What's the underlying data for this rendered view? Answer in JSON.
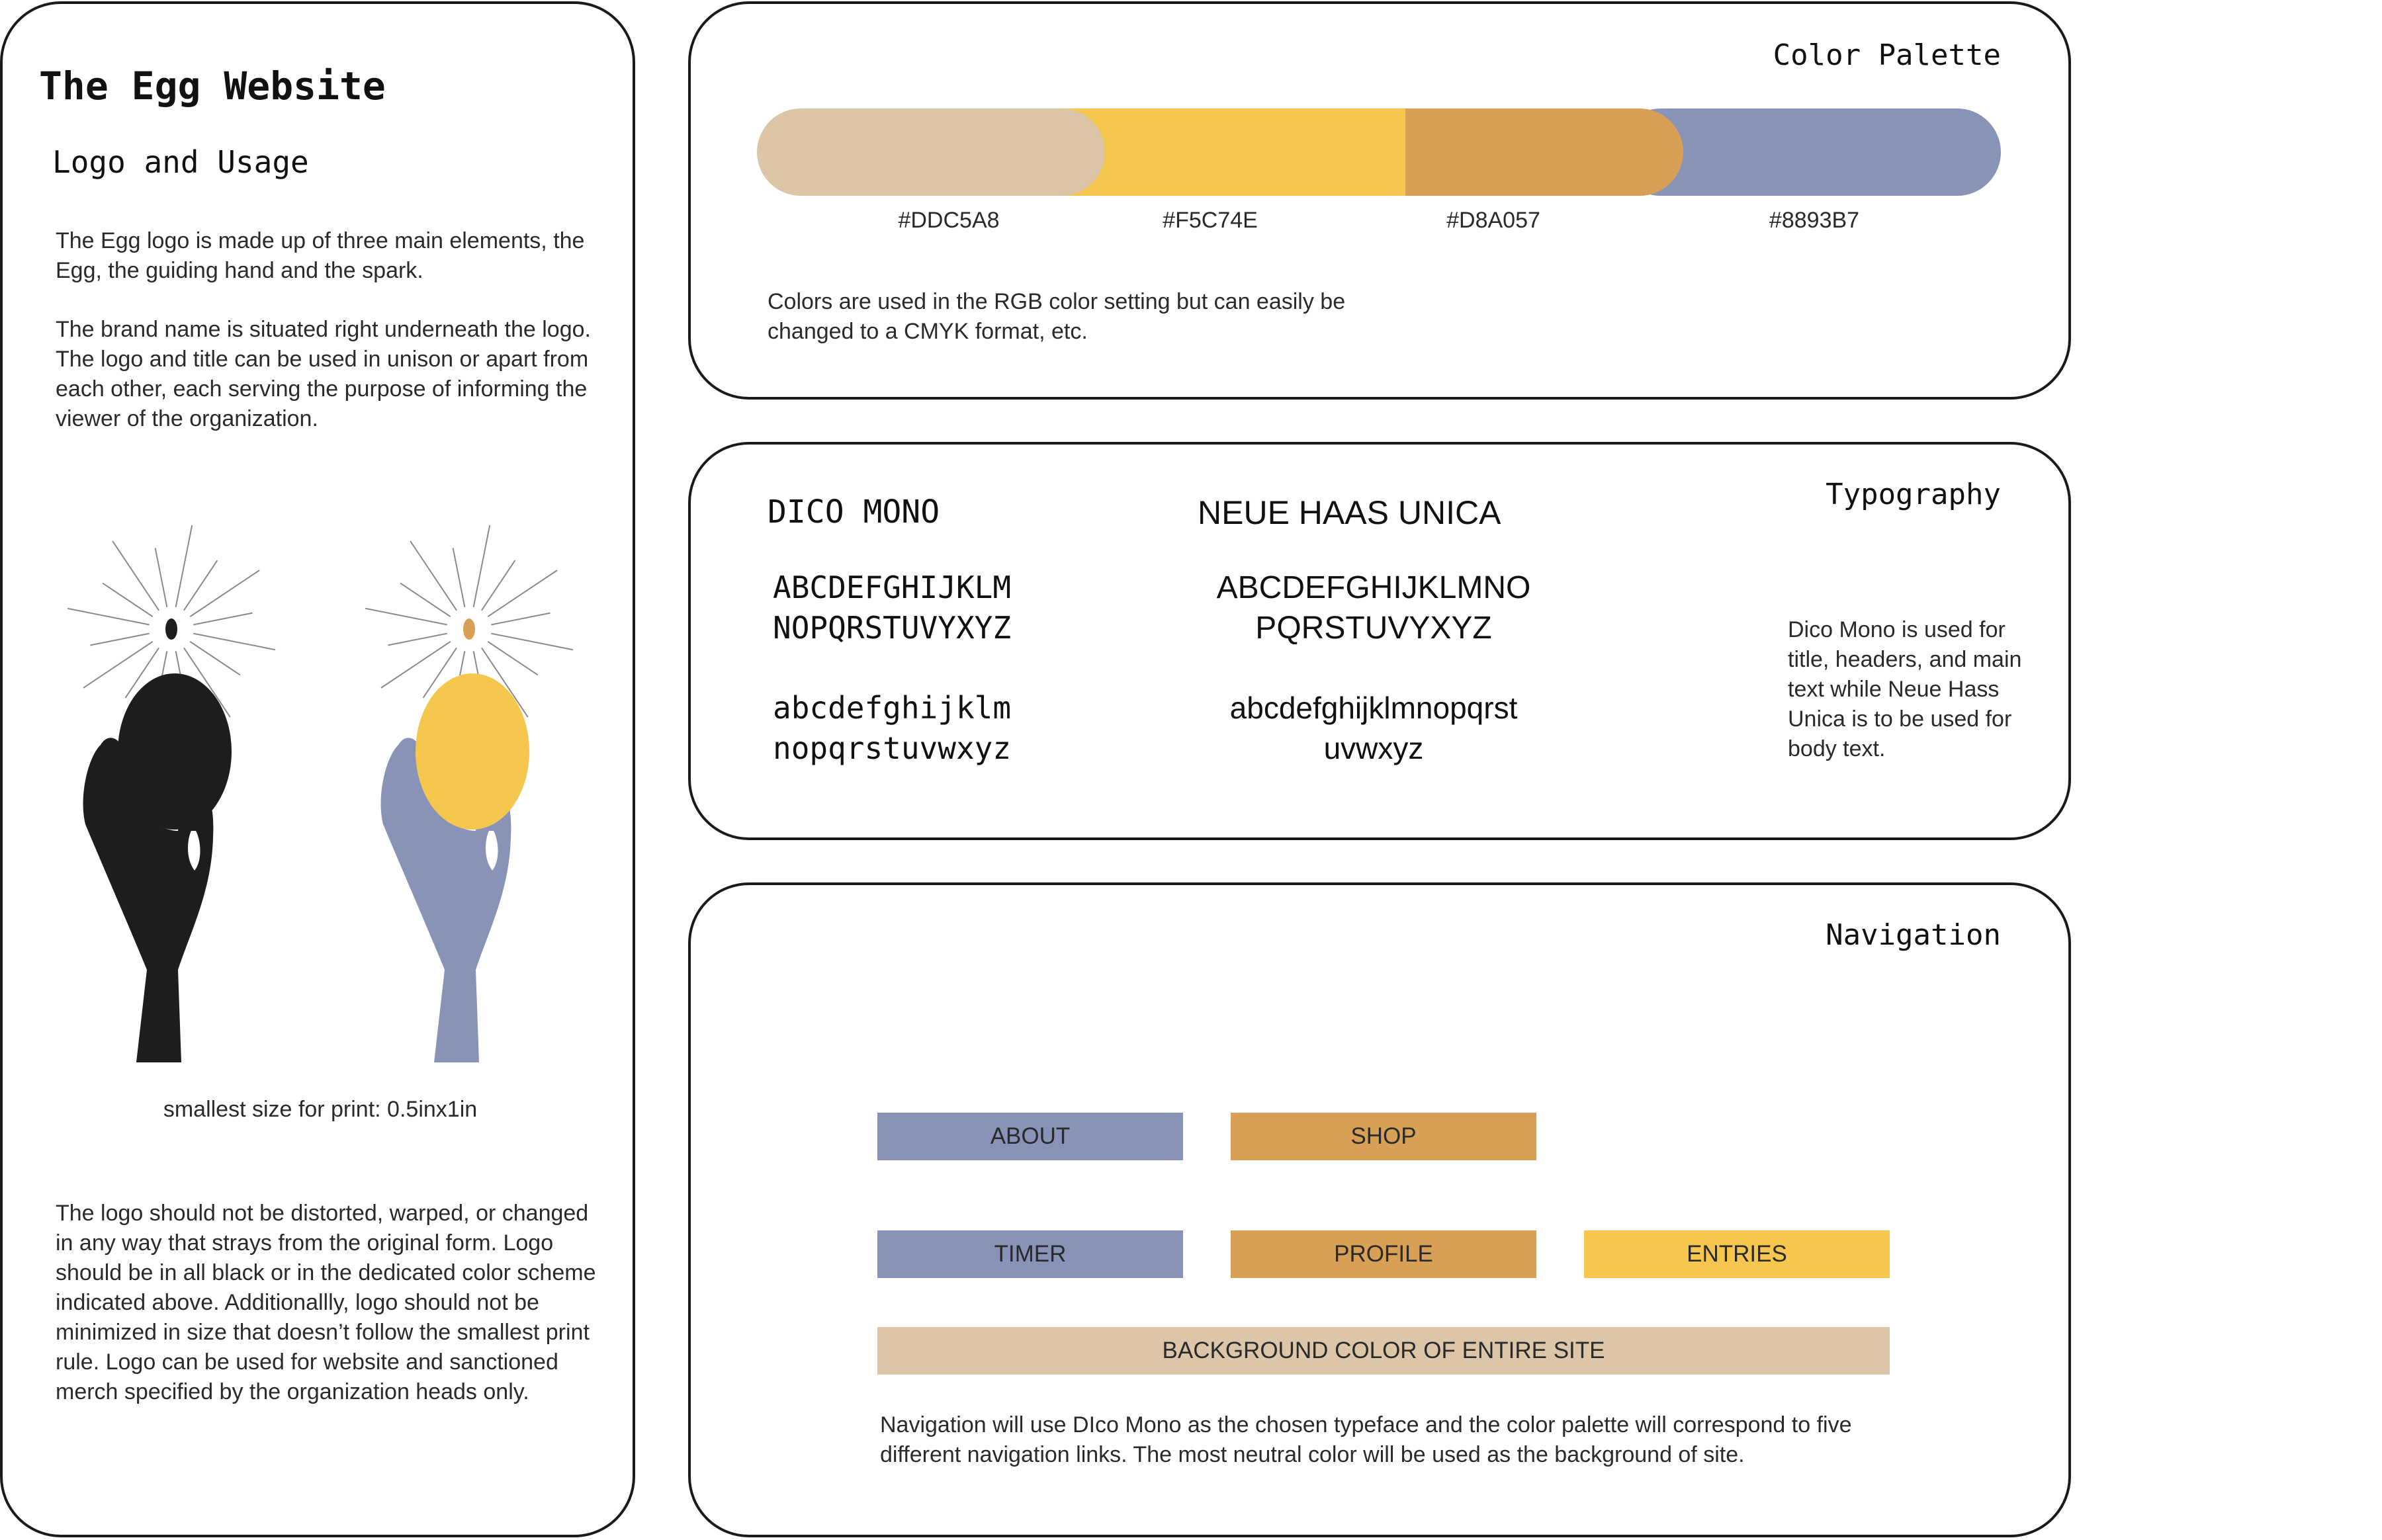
{
  "logo_section": {
    "title": "The Egg Website",
    "heading": "Logo and Usage",
    "intro_1": "The Egg logo is made up of three main elements, the Egg, the guiding hand and the spark.",
    "intro_2": "The brand name is situated right underneath the logo. The logo and title can be used in unison or apart from each other, each serving the purpose of informing the viewer of the organization.",
    "print_size": "smallest size for print: 0.5inx1in",
    "usage_rules": "The logo should not be distorted, warped, or changed in any way that strays from the original form. Logo should be in all black or in the dedicated color scheme indicated above. Additionallly, logo should not be minimized in size that doesn’t follow the smallest print rule. Logo can be used for website and sanctioned merch specified by the organization heads only.",
    "logo_variants": [
      {
        "name": "black",
        "hand_color": "#1E1C1C",
        "egg_color": "#1E1C1C",
        "spark_color": "#1E1C1C"
      },
      {
        "name": "color",
        "hand_color": "#8893B7",
        "egg_color": "#F5C74E",
        "spark_color": "#D8A057"
      }
    ]
  },
  "color_palette": {
    "title": "Color Palette",
    "swatches": [
      {
        "hex": "#DDC5A8",
        "label": "#DDC5A8"
      },
      {
        "hex": "#F5C74E",
        "label": "#F5C74E"
      },
      {
        "hex": "#D8A057",
        "label": "#D8A057"
      },
      {
        "hex": "#8893B7",
        "label": "#8893B7"
      }
    ],
    "note": "Colors are used in the RGB color setting but can easily be changed to a CMYK format, etc."
  },
  "typography": {
    "title": "Typography",
    "fonts": [
      {
        "name": "DICO MONO",
        "upper_1": "ABCDEFGHIJKLM",
        "upper_2": "NOPQRSTUVYXYZ",
        "lower_1": "abcdefghijklm",
        "lower_2": "nopqrstuvwxyz"
      },
      {
        "name": "NEUE HAAS UNICA",
        "upper_1": "ABCDEFGHIJKLMNO",
        "upper_2": "PQRSTUVYXYZ",
        "lower_1": "abcdefghijklmnopqrst",
        "lower_2": "uvwxyz"
      }
    ],
    "note": "Dico Mono is used for title, headers, and main text while Neue Hass Unica is to be used for body text."
  },
  "navigation": {
    "title": "Navigation",
    "links": {
      "about": "ABOUT",
      "shop": "SHOP",
      "timer": "TIMER",
      "profile": "PROFILE",
      "entries": "ENTRIES",
      "background": "BACKGROUND COLOR OF ENTIRE SITE"
    },
    "note": "Navigation will use DIco Mono as the chosen typeface and the  color palette will correspond to five different navigation links. The most neutral color will be used as the background of site."
  }
}
